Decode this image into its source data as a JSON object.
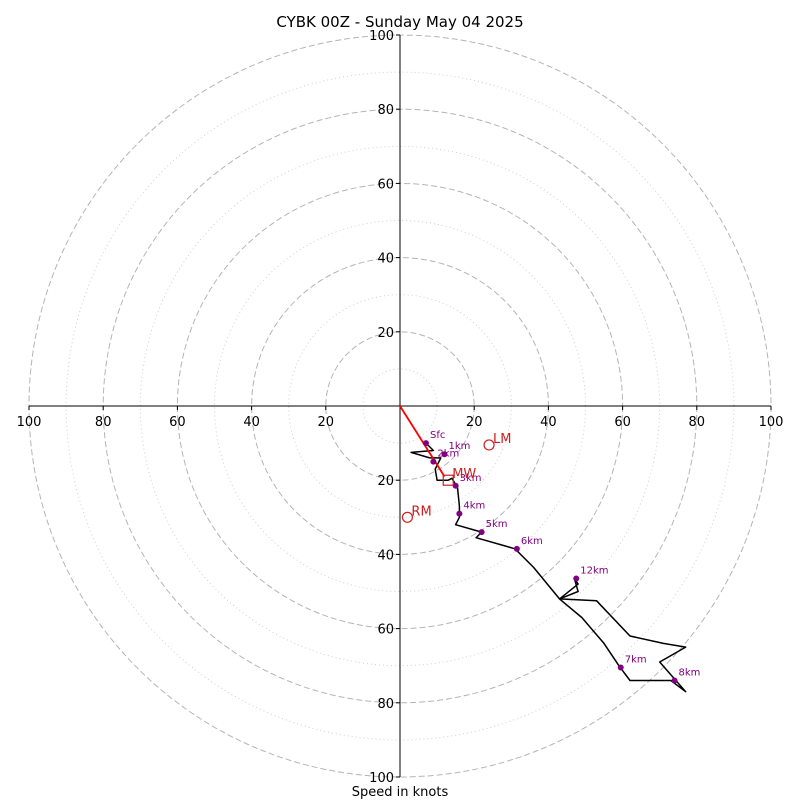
{
  "chart_data": {
    "type": "scatter",
    "title": "CYBK 00Z - Sunday May 04 2025",
    "xlabel": "Speed in knots",
    "rmax": 100,
    "rings_major": [
      20,
      40,
      60,
      80,
      100
    ],
    "rings_minor": [
      10,
      30,
      50,
      70,
      90
    ],
    "tick_values": [
      20,
      40,
      60,
      80,
      100
    ],
    "hodograph_trace": [
      [
        7,
        -10
      ],
      [
        9,
        -12
      ],
      [
        3,
        -12.5
      ],
      [
        8,
        -14
      ],
      [
        11,
        -14
      ],
      [
        9.5,
        -17
      ],
      [
        10,
        -20
      ],
      [
        13,
        -20
      ],
      [
        14,
        -19.5
      ],
      [
        15.5,
        -22
      ],
      [
        16,
        -27
      ],
      [
        16,
        -30
      ],
      [
        15,
        -32
      ],
      [
        22,
        -34
      ],
      [
        20.5,
        -35.5
      ],
      [
        31,
        -38.5
      ],
      [
        36,
        -43.5
      ],
      [
        43,
        -52
      ],
      [
        48,
        -48
      ],
      [
        47,
        -46.5
      ],
      [
        48,
        -50
      ],
      [
        43,
        -52
      ],
      [
        49,
        -57
      ],
      [
        55,
        -64
      ],
      [
        59,
        -70
      ],
      [
        62,
        -74
      ],
      [
        67,
        -74
      ],
      [
        73,
        -74
      ],
      [
        77,
        -77
      ],
      [
        70,
        -69
      ],
      [
        77,
        -65
      ],
      [
        71,
        -64
      ],
      [
        62,
        -62
      ],
      [
        53,
        -52.5
      ],
      [
        43,
        -52
      ]
    ],
    "height_points": [
      {
        "label": "Sfc",
        "u": 7,
        "v": -10
      },
      {
        "label": "1km",
        "u": 12,
        "v": -13
      },
      {
        "label": "2km",
        "u": 9,
        "v": -15
      },
      {
        "label": "3km",
        "u": 15,
        "v": -21.5
      },
      {
        "label": "4km",
        "u": 16,
        "v": -29
      },
      {
        "label": "5km",
        "u": 22,
        "v": -34
      },
      {
        "label": "6km",
        "u": 31.5,
        "v": -38.5
      },
      {
        "label": "7km",
        "u": 59.5,
        "v": -70.5
      },
      {
        "label": "8km",
        "u": 74,
        "v": -74
      },
      {
        "label": "12km",
        "u": 47.5,
        "v": -46.5
      }
    ],
    "storm_motion": [
      {
        "label": "LM",
        "u": 24,
        "v": -10.5,
        "marker": "circle"
      },
      {
        "label": "MW",
        "u": 13,
        "v": -20,
        "marker": "square"
      },
      {
        "label": "RM",
        "u": 2,
        "v": -30,
        "marker": "circle"
      }
    ],
    "shear_vector": {
      "from": [
        0,
        0
      ],
      "to": [
        12,
        -19
      ]
    },
    "colors": {
      "trace": "#000000",
      "height_points": "#800080",
      "storm_motion": "#cc1f1f",
      "shear_vector": "#ff0000",
      "rings": "#b4b4b4"
    }
  }
}
